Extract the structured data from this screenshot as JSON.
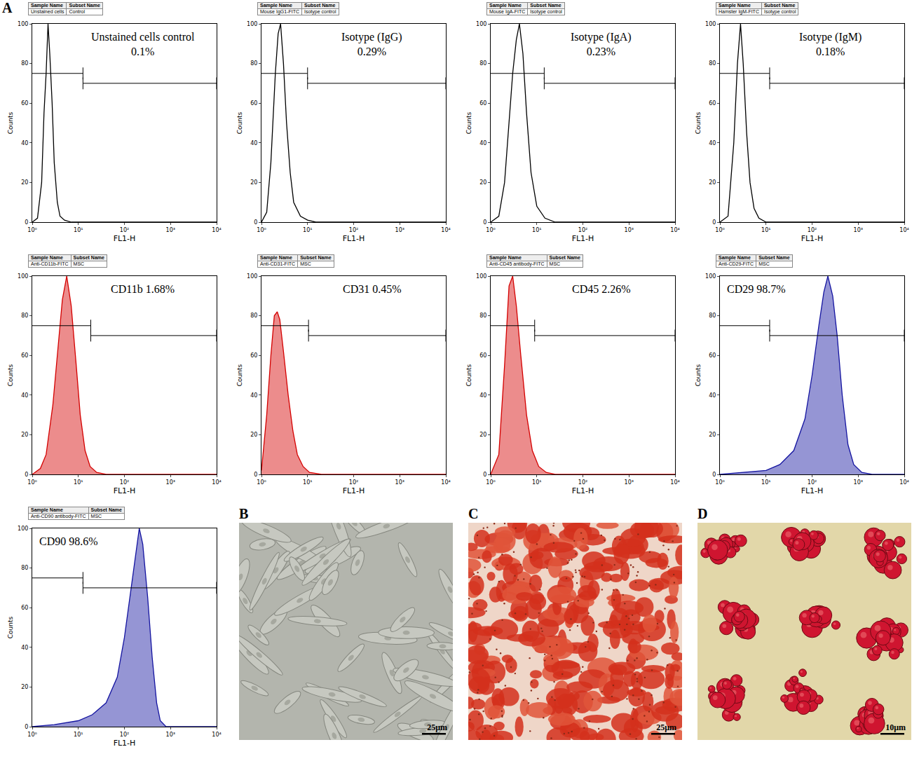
{
  "figure_letter": "A",
  "header_columns": [
    "Sample Name",
    "Subset Name"
  ],
  "chart_data": [
    {
      "type": "line",
      "sample_name": "Unstained cells",
      "subset_name": "Control",
      "annotation": [
        "Unstained cells control",
        "0.1%"
      ],
      "xlabel": "FL1-H",
      "ylabel": "Counts",
      "x": [
        1,
        1.3,
        1.6,
        1.8,
        2.0,
        2.2,
        2.4,
        2.7,
        3.0,
        3.5,
        4,
        5,
        7,
        10,
        10000
      ],
      "values": [
        0,
        2,
        20,
        55,
        75,
        100,
        85,
        60,
        30,
        10,
        3,
        1,
        0,
        0,
        0
      ],
      "color": "#000000",
      "log": "x",
      "grid": false,
      "xlim": [
        1,
        10000
      ],
      "xticks": [
        {
          "value": 1,
          "label": "10⁰"
        },
        {
          "value": 10,
          "label": "10¹"
        },
        {
          "value": 100,
          "label": "10²"
        },
        {
          "value": 1000,
          "label": "10³"
        },
        {
          "value": 10000,
          "label": "10⁴"
        }
      ],
      "ylim": [
        0,
        100
      ],
      "yticks": [
        0,
        20,
        40,
        60,
        80,
        100
      ],
      "gate": {
        "x": 12.6,
        "y": [
          75,
          70
        ]
      }
    },
    {
      "type": "line",
      "sample_name": "Mouse IgG1-FITC",
      "subset_name": "Isotype control",
      "annotation": [
        "Isotype (IgG)",
        "0.29%"
      ],
      "xlabel": "FL1-H",
      "ylabel": "Counts",
      "x": [
        1,
        1.3,
        1.6,
        2.0,
        2.3,
        2.6,
        3.0,
        3.5,
        4.2,
        5,
        7,
        10,
        15,
        10000
      ],
      "values": [
        0,
        5,
        30,
        75,
        95,
        100,
        80,
        50,
        25,
        10,
        3,
        1,
        0,
        0
      ],
      "color": "#000000",
      "log": "x",
      "grid": false,
      "xlim": [
        1,
        10000
      ],
      "xticks": [
        {
          "value": 1,
          "label": "10⁰"
        },
        {
          "value": 10,
          "label": "10¹"
        },
        {
          "value": 100,
          "label": "10²"
        },
        {
          "value": 1000,
          "label": "10³"
        },
        {
          "value": 10000,
          "label": "10⁴"
        }
      ],
      "ylim": [
        0,
        100
      ],
      "yticks": [
        0,
        20,
        40,
        60,
        80,
        100
      ],
      "gate": {
        "x": 10,
        "y": [
          75,
          70
        ]
      }
    },
    {
      "type": "line",
      "sample_name": "Mouse IgA-FITC",
      "subset_name": "Isotype control",
      "annotation": [
        "Isotype (IgA)",
        "0.23%"
      ],
      "xlabel": "FL1-H",
      "ylabel": "Counts",
      "x": [
        1,
        1.5,
        2,
        2.5,
        3,
        3.6,
        4.2,
        5,
        6,
        7.5,
        10,
        15,
        25,
        10000
      ],
      "values": [
        0,
        3,
        20,
        50,
        75,
        92,
        100,
        85,
        55,
        25,
        8,
        2,
        0,
        0
      ],
      "color": "#000000",
      "log": "x",
      "grid": false,
      "xlim": [
        1,
        10000
      ],
      "xticks": [
        {
          "value": 1,
          "label": "10⁰"
        },
        {
          "value": 10,
          "label": "10¹"
        },
        {
          "value": 100,
          "label": "10²"
        },
        {
          "value": 1000,
          "label": "10³"
        },
        {
          "value": 10000,
          "label": "10⁴"
        }
      ],
      "ylim": [
        0,
        100
      ],
      "yticks": [
        0,
        20,
        40,
        60,
        80,
        100
      ],
      "gate": {
        "x": 14.5,
        "y": [
          75,
          70
        ]
      }
    },
    {
      "type": "line",
      "sample_name": "Hamster IgM-FITC",
      "subset_name": "Isotype control",
      "annotation": [
        "Isotype (IgM)",
        "0.18%"
      ],
      "xlabel": "FL1-H",
      "ylabel": "Counts",
      "x": [
        1,
        1.5,
        2,
        2.4,
        2.8,
        3.2,
        3.8,
        4.5,
        5.5,
        7,
        10,
        10000
      ],
      "values": [
        0,
        3,
        40,
        80,
        100,
        80,
        45,
        20,
        7,
        2,
        0,
        0
      ],
      "color": "#000000",
      "log": "x",
      "grid": false,
      "xlim": [
        1,
        10000
      ],
      "xticks": [
        {
          "value": 1,
          "label": "10⁰"
        },
        {
          "value": 10,
          "label": "10¹"
        },
        {
          "value": 100,
          "label": "10²"
        },
        {
          "value": 1000,
          "label": "10³"
        },
        {
          "value": 10000,
          "label": "10⁴"
        }
      ],
      "ylim": [
        0,
        100
      ],
      "yticks": [
        0,
        20,
        40,
        60,
        80,
        100
      ],
      "gate": {
        "x": 12,
        "y": [
          75,
          70
        ]
      }
    },
    {
      "type": "area",
      "sample_name": "Anti-CD11b-FITC",
      "subset_name": "MSC",
      "annotation": [
        "CD11b 1.68%"
      ],
      "xlabel": "FL1-H",
      "ylabel": "Counts",
      "x": [
        1,
        1.5,
        2,
        2.8,
        3.5,
        4.5,
        5.6,
        7,
        9,
        11,
        14,
        18,
        25,
        40,
        10000
      ],
      "values": [
        0,
        3,
        10,
        35,
        60,
        88,
        100,
        85,
        55,
        30,
        12,
        4,
        1,
        0,
        0
      ],
      "color": "#d40000",
      "log": "x",
      "grid": false,
      "xlim": [
        1,
        10000
      ],
      "xticks": [
        {
          "value": 1,
          "label": "10⁰"
        },
        {
          "value": 10,
          "label": "10¹"
        },
        {
          "value": 100,
          "label": "10²"
        },
        {
          "value": 1000,
          "label": "10³"
        },
        {
          "value": 10000,
          "label": "10⁴"
        }
      ],
      "ylim": [
        0,
        100
      ],
      "yticks": [
        0,
        20,
        40,
        60,
        80,
        100
      ],
      "gate": {
        "x": 18.6,
        "y": [
          75,
          70
        ]
      }
    },
    {
      "type": "area",
      "sample_name": "Anti-CD31-FITC",
      "subset_name": "MSC",
      "annotation": [
        "CD31 0.45%"
      ],
      "xlabel": "FL1-H",
      "ylabel": "Counts",
      "x": [
        1,
        1.3,
        1.6,
        1.9,
        2.2,
        2.5,
        3,
        3.8,
        4.8,
        6,
        8,
        11,
        20,
        10000
      ],
      "values": [
        2,
        30,
        60,
        80,
        82,
        78,
        62,
        40,
        22,
        10,
        4,
        1,
        0,
        0
      ],
      "color": "#d40000",
      "log": "x",
      "grid": false,
      "xlim": [
        1,
        10000
      ],
      "xticks": [
        {
          "value": 1,
          "label": "10⁰"
        },
        {
          "value": 10,
          "label": "10¹"
        },
        {
          "value": 100,
          "label": "10²"
        },
        {
          "value": 1000,
          "label": "10³"
        },
        {
          "value": 10000,
          "label": "10⁴"
        }
      ],
      "ylim": [
        0,
        100
      ],
      "yticks": [
        0,
        20,
        40,
        60,
        80,
        100
      ],
      "gate": {
        "x": 10.5,
        "y": [
          75,
          70
        ]
      }
    },
    {
      "type": "area",
      "sample_name": "Anti-CD45 antibody-FITC",
      "subset_name": "MSC",
      "annotation": [
        "CD45 2.26%"
      ],
      "xlabel": "FL1-H",
      "ylabel": "Counts",
      "x": [
        1,
        1.5,
        2,
        2.5,
        3.0,
        3.6,
        4.5,
        6,
        8,
        11,
        16,
        25,
        10000
      ],
      "values": [
        0,
        10,
        55,
        95,
        100,
        85,
        60,
        30,
        12,
        4,
        1,
        0,
        0
      ],
      "color": "#d40000",
      "log": "x",
      "grid": false,
      "xlim": [
        1,
        10000
      ],
      "xticks": [
        {
          "value": 1,
          "label": "10⁰"
        },
        {
          "value": 10,
          "label": "10¹"
        },
        {
          "value": 100,
          "label": "10²"
        },
        {
          "value": 1000,
          "label": "10³"
        },
        {
          "value": 10000,
          "label": "10⁴"
        }
      ],
      "ylim": [
        0,
        100
      ],
      "yticks": [
        0,
        20,
        40,
        60,
        80,
        100
      ],
      "gate": {
        "x": 9,
        "y": [
          75,
          70
        ]
      }
    },
    {
      "type": "area",
      "sample_name": "Anti-CD29-FITC",
      "subset_name": "MSC",
      "annotation": [
        "CD29 98.7%"
      ],
      "xlabel": "FL1-H",
      "ylabel": "Counts",
      "x": [
        1,
        3,
        10,
        20,
        40,
        70,
        100,
        140,
        180,
        220,
        280,
        350,
        450,
        600,
        800,
        1200,
        2000,
        10000
      ],
      "values": [
        0,
        1,
        2,
        5,
        12,
        28,
        50,
        75,
        92,
        100,
        90,
        70,
        40,
        15,
        5,
        1,
        0,
        0
      ],
      "color": "#1414a0",
      "log": "x",
      "grid": false,
      "xlim": [
        1,
        10000
      ],
      "xticks": [
        {
          "value": 1,
          "label": "10⁰"
        },
        {
          "value": 10,
          "label": "10¹"
        },
        {
          "value": 100,
          "label": "10²"
        },
        {
          "value": 1000,
          "label": "10³"
        },
        {
          "value": 10000,
          "label": "10⁴"
        }
      ],
      "ylim": [
        0,
        100
      ],
      "yticks": [
        0,
        20,
        40,
        60,
        80,
        100
      ],
      "gate": {
        "x": 12,
        "y": [
          75,
          70
        ]
      }
    },
    {
      "type": "area",
      "sample_name": "Anti-CD90 antibody-FITC",
      "subset_name": "MSC",
      "annotation": [
        "CD90 98.6%"
      ],
      "xlabel": "FL1-H",
      "ylabel": "Counts",
      "x": [
        1,
        3,
        10,
        20,
        40,
        70,
        100,
        140,
        180,
        210,
        250,
        320,
        400,
        500,
        600,
        800,
        10000
      ],
      "values": [
        0,
        1,
        3,
        6,
        12,
        25,
        45,
        70,
        90,
        100,
        92,
        65,
        35,
        12,
        3,
        0,
        0
      ],
      "color": "#1414a0",
      "log": "x",
      "grid": false,
      "xlim": [
        1,
        10000
      ],
      "xticks": [
        {
          "value": 1,
          "label": "10⁰"
        },
        {
          "value": 10,
          "label": "10¹"
        },
        {
          "value": 100,
          "label": "10²"
        },
        {
          "value": 1000,
          "label": "10³"
        },
        {
          "value": 10000,
          "label": "10⁴"
        }
      ],
      "ylim": [
        0,
        100
      ],
      "yticks": [
        0,
        20,
        40,
        60,
        80,
        100
      ],
      "gate": {
        "x": 12.6,
        "y": [
          75,
          70
        ]
      }
    }
  ],
  "images": [
    {
      "letter": "B",
      "scale_bar": "25μm"
    },
    {
      "letter": "C",
      "scale_bar": "25μm"
    },
    {
      "letter": "D",
      "scale_bar": "10μm"
    }
  ]
}
